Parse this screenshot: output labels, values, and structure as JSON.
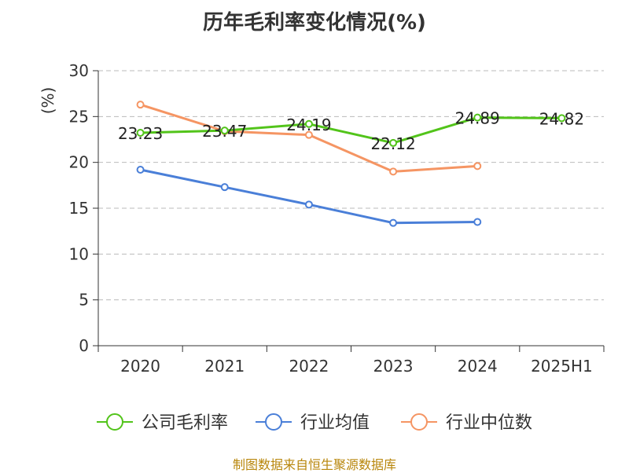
{
  "title": "历年毛利率变化情况(%)",
  "source": "制图数据来自恒生聚源数据库",
  "colors": {
    "gross_margin": "#52c41a",
    "industry_avg": "#4a7fd8",
    "industry_median": "#f59563",
    "unit": "#cc0000",
    "grid": "#bbbbbb",
    "axis": "#333333"
  },
  "chart_data": {
    "type": "line",
    "title": "历年毛利率变化情况(%)",
    "ylabel": "(%)",
    "xlabel": "",
    "categories": [
      "2020",
      "2021",
      "2022",
      "2023",
      "2024",
      "2025H1"
    ],
    "ylim": [
      0,
      30
    ],
    "yticks": [
      0,
      5,
      10,
      15,
      20,
      25,
      30
    ],
    "grid": true,
    "legend": "bottom",
    "series": [
      {
        "name": "公司毛利率",
        "key": "gross_margin",
        "values": [
          23.23,
          23.47,
          24.19,
          22.12,
          24.89,
          24.82
        ],
        "data_labels": [
          "23.23",
          "23.47",
          "24.19",
          "22.12",
          "24.89",
          "24.82"
        ]
      },
      {
        "name": "行业均值",
        "key": "industry_avg",
        "values": [
          19.2,
          17.3,
          15.4,
          13.4,
          13.5,
          null
        ]
      },
      {
        "name": "行业中位数",
        "key": "industry_median",
        "values": [
          26.3,
          23.4,
          23.0,
          19.0,
          19.6,
          null
        ]
      }
    ]
  }
}
